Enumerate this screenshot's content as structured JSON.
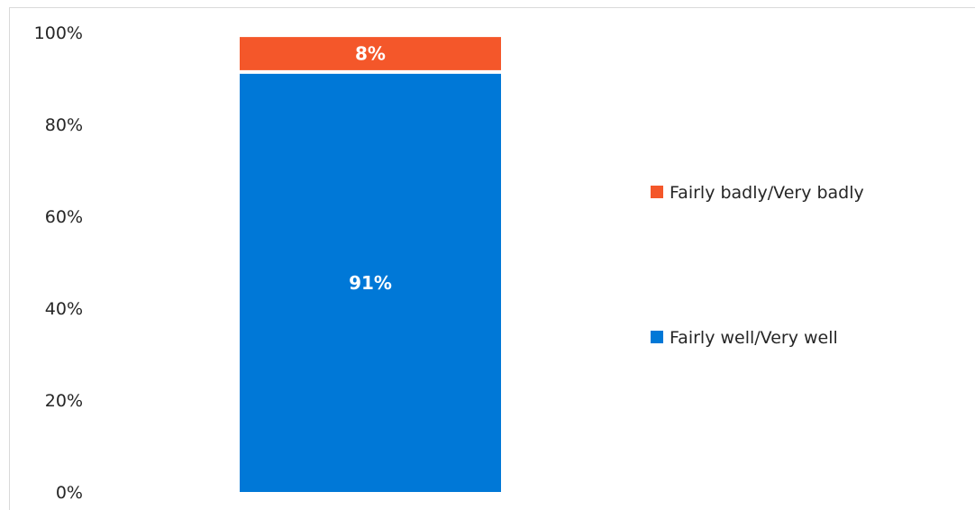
{
  "chart_data": {
    "type": "bar",
    "stacked": true,
    "categories": [
      ""
    ],
    "series": [
      {
        "name": "Fairly well/Very well",
        "values": [
          91
        ],
        "color": "#0078d7",
        "label": "91%"
      },
      {
        "name": "Fairly badly/Very badly",
        "values": [
          8
        ],
        "color": "#f4572a",
        "label": "8%"
      }
    ],
    "ylim": [
      0,
      100
    ],
    "yticks": [
      "0%",
      "20%",
      "40%",
      "60%",
      "80%",
      "100%"
    ],
    "ytick_values": [
      0,
      20,
      40,
      60,
      80,
      100
    ],
    "grid": false,
    "legend_position": "right",
    "legend_order": [
      "Fairly badly/Very badly",
      "Fairly well/Very well"
    ],
    "xlabel": "",
    "ylabel": "",
    "title": ""
  }
}
